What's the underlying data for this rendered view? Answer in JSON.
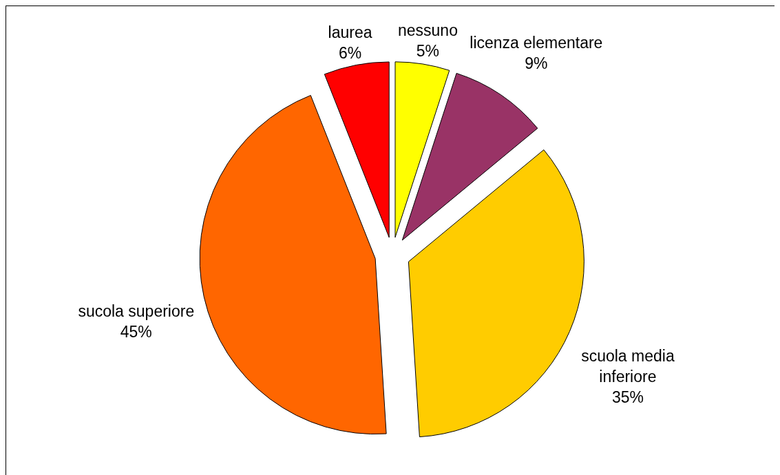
{
  "chart_data": {
    "type": "pie",
    "categories": [
      "nessuno",
      "licenza elementare",
      "scuola media inferiore",
      "sucola superiore",
      "laurea"
    ],
    "values": [
      5,
      9,
      35,
      45,
      6
    ],
    "colors": [
      "#ffff00",
      "#993366",
      "#ffcc00",
      "#ff6600",
      "#ff0000"
    ],
    "value_labels": [
      "5%",
      "9%",
      "35%",
      "45%",
      "6%"
    ]
  }
}
